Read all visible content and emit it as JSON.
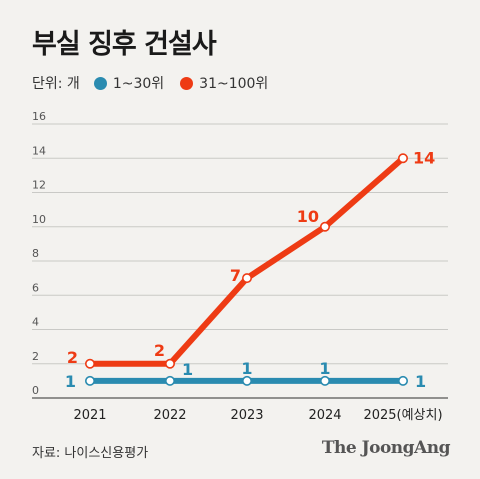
{
  "title": "부실 징후 건설사",
  "legend": {
    "unit": "단위: 개",
    "items": [
      {
        "label": "1~30위",
        "color": "#2a8bb0"
      },
      {
        "label": "31~100위",
        "color": "#ee3b14"
      }
    ]
  },
  "source": "자료: 나이스신용평가",
  "brand": "The JoongAng",
  "chart_data": {
    "type": "line",
    "categories": [
      "2021",
      "2022",
      "2023",
      "2024",
      "2025(예상치)"
    ],
    "y_ticks": [
      0,
      2,
      4,
      6,
      8,
      10,
      12,
      14,
      16
    ],
    "ylim": [
      0,
      16
    ],
    "grid": true,
    "legend_position": "top-left",
    "series": [
      {
        "name": "31~100위",
        "color": "#ee3b14",
        "values": [
          2,
          2,
          7,
          10,
          14
        ]
      },
      {
        "name": "1~30위",
        "color": "#2a8bb0",
        "values": [
          1,
          1,
          1,
          1,
          1
        ]
      }
    ]
  }
}
